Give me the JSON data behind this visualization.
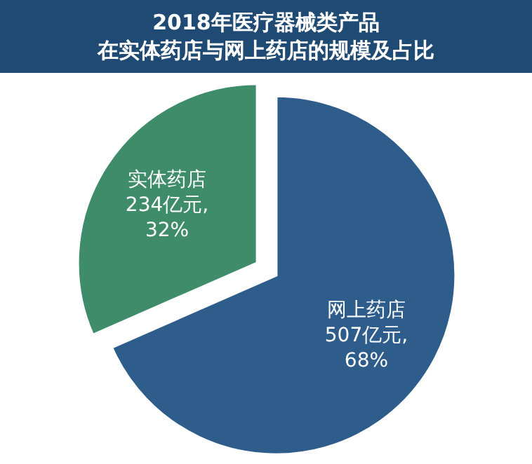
{
  "chart_data": {
    "type": "pie",
    "title": "2018年医疗器械类产品",
    "subtitle": "在实体药店与网上药店的规模及占比",
    "categories": [
      "网上药店",
      "实体药店"
    ],
    "values": [
      507,
      234
    ],
    "colors": [
      "#2e5d8c",
      "#3f8c6b"
    ],
    "value_labels": [
      "507亿元,\n68%",
      "234亿元,\n32%"
    ]
  }
}
